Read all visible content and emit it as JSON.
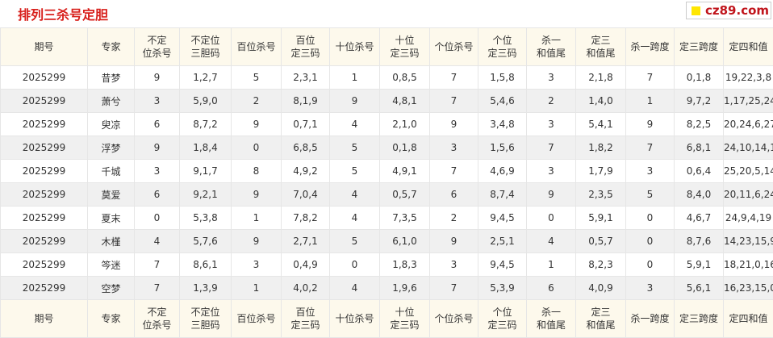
{
  "header": {
    "title": "排列三杀号定胆",
    "logo": "cz89.com"
  },
  "table": {
    "columns": [
      "期号",
      "专家",
      "不定\n位杀号",
      "不定位\n三胆码",
      "百位杀号",
      "百位\n定三码",
      "十位杀号",
      "十位\n定三码",
      "个位杀号",
      "个位\n定三码",
      "杀一\n和值尾",
      "定三\n和值尾",
      "杀一跨度",
      "定三跨度",
      "定四和值"
    ],
    "rows": [
      [
        "2025299",
        "昔梦",
        "9",
        "1,2,7",
        "5",
        "2,3,1",
        "1",
        "0,8,5",
        "7",
        "1,5,8",
        "3",
        "2,1,8",
        "7",
        "0,1,8",
        "19,22,3,8"
      ],
      [
        "2025299",
        "萧兮",
        "3",
        "5,9,0",
        "2",
        "8,1,9",
        "9",
        "4,8,1",
        "7",
        "5,4,6",
        "2",
        "1,4,0",
        "1",
        "9,7,2",
        "1,17,25,24"
      ],
      [
        "2025299",
        "臾凉",
        "6",
        "8,7,2",
        "9",
        "0,7,1",
        "4",
        "2,1,0",
        "9",
        "3,4,8",
        "3",
        "5,4,1",
        "9",
        "8,2,5",
        "20,24,6,27"
      ],
      [
        "2025299",
        "浮梦",
        "9",
        "1,8,4",
        "0",
        "6,8,5",
        "5",
        "0,1,8",
        "3",
        "1,5,6",
        "7",
        "1,8,2",
        "7",
        "6,8,1",
        "24,10,14,1"
      ],
      [
        "2025299",
        "千城",
        "3",
        "9,1,7",
        "8",
        "4,9,2",
        "5",
        "4,9,1",
        "7",
        "4,6,9",
        "3",
        "1,7,9",
        "3",
        "0,6,4",
        "25,20,5,14"
      ],
      [
        "2025299",
        "莫爱",
        "6",
        "9,2,1",
        "9",
        "7,0,4",
        "4",
        "0,5,7",
        "6",
        "8,7,4",
        "9",
        "2,3,5",
        "5",
        "8,4,0",
        "20,11,6,24"
      ],
      [
        "2025299",
        "夏末",
        "0",
        "5,3,8",
        "1",
        "7,8,2",
        "4",
        "7,3,5",
        "2",
        "9,4,5",
        "0",
        "5,9,1",
        "0",
        "4,6,7",
        "24,9,4,19"
      ],
      [
        "2025299",
        "木槿",
        "4",
        "5,7,6",
        "9",
        "2,7,1",
        "5",
        "6,1,0",
        "9",
        "2,5,1",
        "4",
        "0,5,7",
        "0",
        "8,7,6",
        "14,23,15,9"
      ],
      [
        "2025299",
        "笒迷",
        "7",
        "8,6,1",
        "3",
        "0,4,9",
        "0",
        "1,8,3",
        "3",
        "9,4,5",
        "1",
        "8,2,3",
        "0",
        "5,9,1",
        "18,21,0,16"
      ],
      [
        "2025299",
        "空梦",
        "7",
        "1,3,9",
        "1",
        "4,0,2",
        "4",
        "1,9,6",
        "7",
        "5,3,9",
        "6",
        "4,0,9",
        "3",
        "5,6,1",
        "16,23,15,0"
      ]
    ]
  }
}
